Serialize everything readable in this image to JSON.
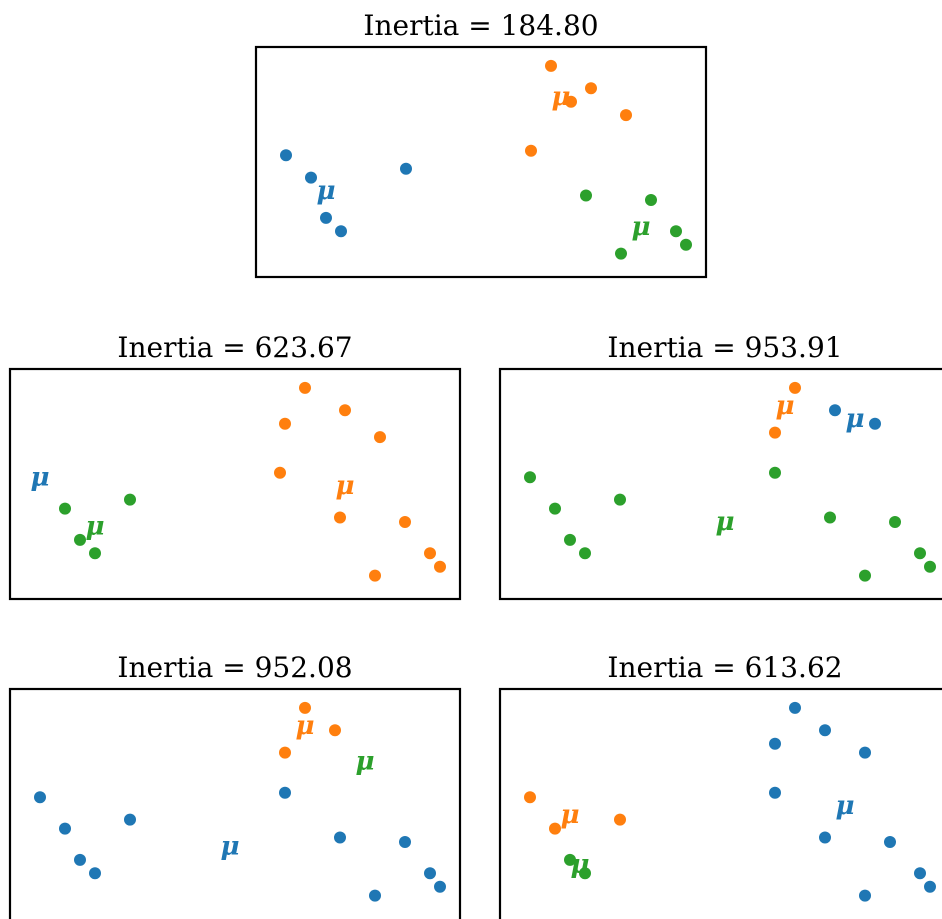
{
  "colors": {
    "c0": "#1f77b4",
    "c1": "#ff7f0e",
    "c2": "#2ca02c"
  },
  "centroid_symbol": "μ",
  "chart_data": [
    {
      "type": "scatter",
      "title": "Inertia = 184.80",
      "inertia": 184.8,
      "grid": false,
      "points": [
        {
          "x": 0.4,
          "y": 2.2,
          "cluster": 0
        },
        {
          "x": 0.9,
          "y": 1.7,
          "cluster": 0
        },
        {
          "x": 1.2,
          "y": 0.8,
          "cluster": 0
        },
        {
          "x": 1.5,
          "y": 0.5,
          "cluster": 0
        },
        {
          "x": 2.8,
          "y": 1.9,
          "cluster": 0
        },
        {
          "x": 5.7,
          "y": 4.2,
          "cluster": 1
        },
        {
          "x": 6.1,
          "y": 3.4,
          "cluster": 1
        },
        {
          "x": 6.5,
          "y": 3.7,
          "cluster": 1
        },
        {
          "x": 5.3,
          "y": 2.3,
          "cluster": 1
        },
        {
          "x": 7.2,
          "y": 3.1,
          "cluster": 1
        },
        {
          "x": 6.4,
          "y": 1.3,
          "cluster": 2
        },
        {
          "x": 7.7,
          "y": 1.2,
          "cluster": 2
        },
        {
          "x": 8.2,
          "y": 0.5,
          "cluster": 2
        },
        {
          "x": 8.4,
          "y": 0.2,
          "cluster": 2
        },
        {
          "x": 7.1,
          "y": 0.0,
          "cluster": 2
        }
      ],
      "centroids": [
        {
          "x": 1.2,
          "y": 1.4,
          "cluster": 0
        },
        {
          "x": 5.9,
          "y": 3.5,
          "cluster": 1
        },
        {
          "x": 7.5,
          "y": 0.6,
          "cluster": 2
        }
      ]
    },
    {
      "type": "scatter",
      "title": "Inertia = 623.67",
      "inertia": 623.67,
      "grid": false,
      "points": [
        {
          "x": 5.7,
          "y": 4.2,
          "cluster": 1
        },
        {
          "x": 6.5,
          "y": 3.7,
          "cluster": 1
        },
        {
          "x": 5.3,
          "y": 3.4,
          "cluster": 1
        },
        {
          "x": 7.2,
          "y": 3.1,
          "cluster": 1
        },
        {
          "x": 5.2,
          "y": 2.3,
          "cluster": 1
        },
        {
          "x": 6.4,
          "y": 1.3,
          "cluster": 1
        },
        {
          "x": 7.7,
          "y": 1.2,
          "cluster": 1
        },
        {
          "x": 8.2,
          "y": 0.5,
          "cluster": 1
        },
        {
          "x": 8.4,
          "y": 0.2,
          "cluster": 1
        },
        {
          "x": 7.1,
          "y": 0.0,
          "cluster": 1
        },
        {
          "x": 0.9,
          "y": 1.5,
          "cluster": 2
        },
        {
          "x": 2.2,
          "y": 1.7,
          "cluster": 2
        },
        {
          "x": 1.2,
          "y": 0.8,
          "cluster": 2
        },
        {
          "x": 1.5,
          "y": 0.5,
          "cluster": 2
        }
      ],
      "centroids": [
        {
          "x": 0.4,
          "y": 2.2,
          "cluster": 0
        },
        {
          "x": 6.5,
          "y": 2.0,
          "cluster": 1
        },
        {
          "x": 1.5,
          "y": 1.1,
          "cluster": 2
        }
      ]
    },
    {
      "type": "scatter",
      "title": "Inertia = 953.91",
      "inertia": 953.91,
      "grid": false,
      "points": [
        {
          "x": 6.5,
          "y": 3.7,
          "cluster": 0
        },
        {
          "x": 7.3,
          "y": 3.4,
          "cluster": 0
        },
        {
          "x": 5.7,
          "y": 4.2,
          "cluster": 1
        },
        {
          "x": 5.3,
          "y": 3.2,
          "cluster": 1
        },
        {
          "x": 0.4,
          "y": 2.2,
          "cluster": 2
        },
        {
          "x": 0.9,
          "y": 1.5,
          "cluster": 2
        },
        {
          "x": 2.2,
          "y": 1.7,
          "cluster": 2
        },
        {
          "x": 5.3,
          "y": 2.3,
          "cluster": 2
        },
        {
          "x": 1.2,
          "y": 0.8,
          "cluster": 2
        },
        {
          "x": 1.5,
          "y": 0.5,
          "cluster": 2
        },
        {
          "x": 6.4,
          "y": 1.3,
          "cluster": 2
        },
        {
          "x": 7.7,
          "y": 1.2,
          "cluster": 2
        },
        {
          "x": 8.2,
          "y": 0.5,
          "cluster": 2
        },
        {
          "x": 8.4,
          "y": 0.2,
          "cluster": 2
        },
        {
          "x": 7.1,
          "y": 0.0,
          "cluster": 2
        }
      ],
      "centroids": [
        {
          "x": 6.9,
          "y": 3.5,
          "cluster": 0
        },
        {
          "x": 5.5,
          "y": 3.8,
          "cluster": 1
        },
        {
          "x": 4.3,
          "y": 1.2,
          "cluster": 2
        }
      ]
    },
    {
      "type": "scatter",
      "title": "Inertia = 952.08",
      "inertia": 952.08,
      "grid": false,
      "points": [
        {
          "x": 5.7,
          "y": 4.2,
          "cluster": 1
        },
        {
          "x": 6.3,
          "y": 3.7,
          "cluster": 1
        },
        {
          "x": 5.3,
          "y": 3.2,
          "cluster": 1
        },
        {
          "x": 0.4,
          "y": 2.2,
          "cluster": 0
        },
        {
          "x": 0.9,
          "y": 1.5,
          "cluster": 0
        },
        {
          "x": 2.2,
          "y": 1.7,
          "cluster": 0
        },
        {
          "x": 5.3,
          "y": 2.3,
          "cluster": 0
        },
        {
          "x": 1.2,
          "y": 0.8,
          "cluster": 0
        },
        {
          "x": 1.5,
          "y": 0.5,
          "cluster": 0
        },
        {
          "x": 6.4,
          "y": 1.3,
          "cluster": 0
        },
        {
          "x": 7.7,
          "y": 1.2,
          "cluster": 0
        },
        {
          "x": 8.2,
          "y": 0.5,
          "cluster": 0
        },
        {
          "x": 8.4,
          "y": 0.2,
          "cluster": 0
        },
        {
          "x": 7.1,
          "y": 0.0,
          "cluster": 0
        }
      ],
      "centroids": [
        {
          "x": 4.2,
          "y": 1.1,
          "cluster": 0
        },
        {
          "x": 5.7,
          "y": 3.8,
          "cluster": 1
        },
        {
          "x": 6.9,
          "y": 3.0,
          "cluster": 2
        }
      ]
    },
    {
      "type": "scatter",
      "title": "Inertia = 613.62",
      "inertia": 613.62,
      "grid": false,
      "points": [
        {
          "x": 5.7,
          "y": 4.2,
          "cluster": 0
        },
        {
          "x": 6.3,
          "y": 3.7,
          "cluster": 0
        },
        {
          "x": 5.3,
          "y": 3.4,
          "cluster": 0
        },
        {
          "x": 7.1,
          "y": 3.2,
          "cluster": 0
        },
        {
          "x": 5.3,
          "y": 2.3,
          "cluster": 0
        },
        {
          "x": 6.3,
          "y": 1.3,
          "cluster": 0
        },
        {
          "x": 7.6,
          "y": 1.2,
          "cluster": 0
        },
        {
          "x": 8.2,
          "y": 0.5,
          "cluster": 0
        },
        {
          "x": 8.4,
          "y": 0.2,
          "cluster": 0
        },
        {
          "x": 7.1,
          "y": 0.0,
          "cluster": 0
        },
        {
          "x": 0.4,
          "y": 2.2,
          "cluster": 1
        },
        {
          "x": 0.9,
          "y": 1.5,
          "cluster": 1
        },
        {
          "x": 2.2,
          "y": 1.7,
          "cluster": 1
        },
        {
          "x": 1.2,
          "y": 0.8,
          "cluster": 2
        },
        {
          "x": 1.5,
          "y": 0.5,
          "cluster": 2
        }
      ],
      "centroids": [
        {
          "x": 6.7,
          "y": 2.0,
          "cluster": 0
        },
        {
          "x": 1.2,
          "y": 1.8,
          "cluster": 1
        },
        {
          "x": 1.4,
          "y": 0.7,
          "cluster": 2
        }
      ]
    }
  ]
}
